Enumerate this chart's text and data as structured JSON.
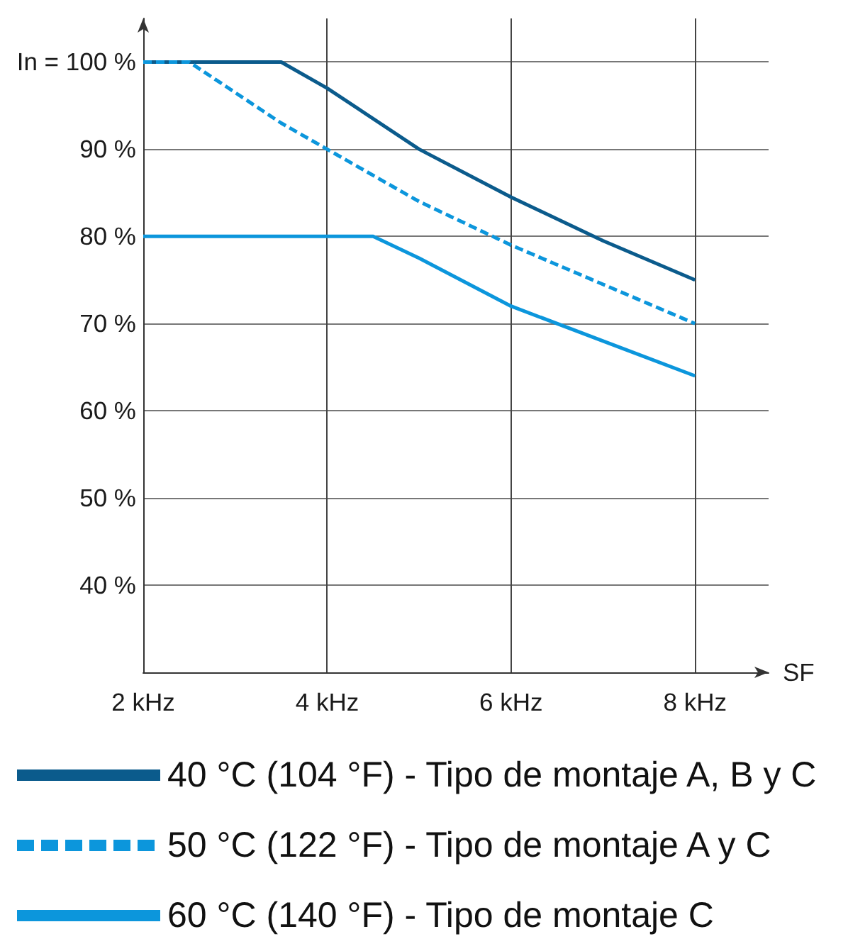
{
  "chart_data": {
    "type": "line",
    "xlabel": "SF",
    "xlim": [
      2,
      8.8
    ],
    "xticks": [
      {
        "value": 2,
        "label": "2 kHz"
      },
      {
        "value": 4,
        "label": "4 kHz"
      },
      {
        "value": 6,
        "label": "6 kHz"
      },
      {
        "value": 8,
        "label": "8 kHz"
      }
    ],
    "ylim": [
      30,
      105
    ],
    "yticks": [
      {
        "value": 40,
        "label": "40 %"
      },
      {
        "value": 50,
        "label": "50 %"
      },
      {
        "value": 60,
        "label": "60 %"
      },
      {
        "value": 70,
        "label": "70 %"
      },
      {
        "value": 80,
        "label": "80 %"
      },
      {
        "value": 90,
        "label": "90 %"
      },
      {
        "value": 100,
        "label": "In = 100 %"
      }
    ],
    "grid": true,
    "legend": "bottom",
    "marker": "none",
    "line_style": "solid",
    "series": [
      {
        "name": "40 °C (104 °F) - Tipo de montaje A, B y C",
        "color": "#0b5b8c",
        "x": [
          2,
          3.5,
          4,
          5,
          6,
          7,
          8
        ],
        "values": [
          100,
          100,
          97,
          90,
          84.5,
          79.5,
          75
        ]
      },
      {
        "name": "50 °C (122 °F) - Tipo de montaje A y C",
        "color": "#0c96dc",
        "line_style": "dashed",
        "x": [
          2,
          2.5,
          3,
          3.5,
          4,
          5,
          6,
          7,
          8
        ],
        "values": [
          100,
          100,
          96.5,
          93,
          90,
          84,
          79,
          74.5,
          70
        ]
      },
      {
        "name": "60 °C (140 °F) - Tipo de montaje C",
        "color": "#0c96dc",
        "x": [
          2,
          4.5,
          5,
          6,
          7,
          8
        ],
        "values": [
          80,
          80,
          77.5,
          72,
          68,
          64
        ]
      }
    ]
  }
}
